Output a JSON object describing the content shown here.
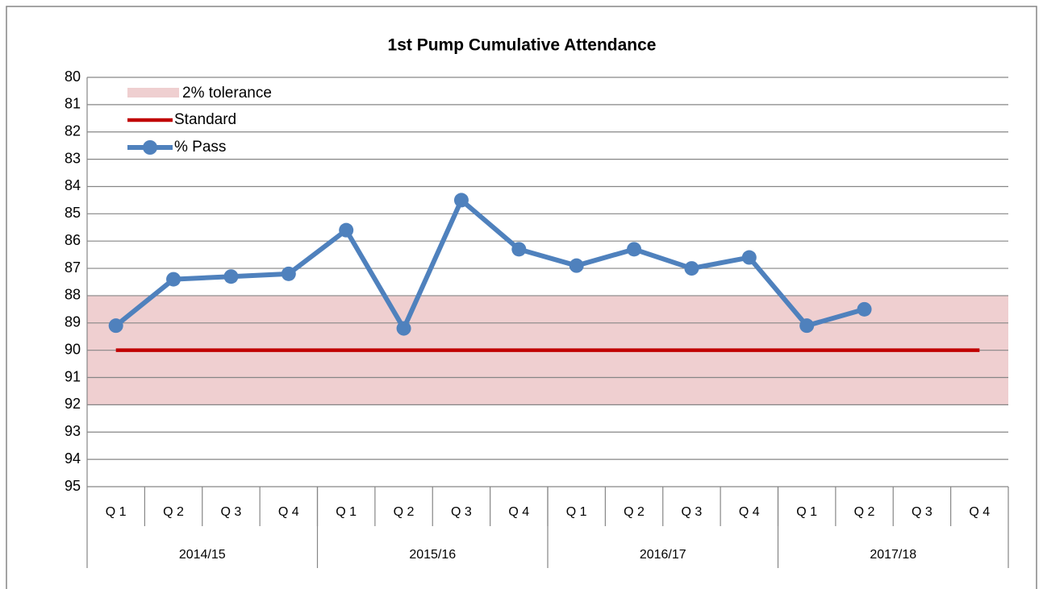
{
  "chart_data": {
    "type": "line",
    "title": "1st Pump Cumulative Attendance",
    "category_groups": [
      {
        "name": "2014/15",
        "categories": [
          "Q 1",
          "Q 2",
          "Q 3",
          "Q 4"
        ]
      },
      {
        "name": "2015/16",
        "categories": [
          "Q 1",
          "Q 2",
          "Q 3",
          "Q 4"
        ]
      },
      {
        "name": "2016/17",
        "categories": [
          "Q 1",
          "Q 2",
          "Q 3",
          "Q 4"
        ]
      },
      {
        "name": "2017/18",
        "categories": [
          "Q 1",
          "Q 2",
          "Q 3",
          "Q 4"
        ]
      }
    ],
    "ylim": [
      80,
      95
    ],
    "y_inverted": true,
    "yticks": [
      80,
      81,
      82,
      83,
      84,
      85,
      86,
      87,
      88,
      89,
      90,
      91,
      92,
      93,
      94,
      95
    ],
    "grid": true,
    "legend": "top-left",
    "band": {
      "name": "2% tolerance",
      "color": "#efcfd0",
      "low": 88,
      "high": 92
    },
    "series": [
      {
        "name": "Standard",
        "color": "#c00000",
        "markers": false,
        "values": [
          90,
          90,
          90,
          90,
          90,
          90,
          90,
          90,
          90,
          90,
          90,
          90,
          90,
          90,
          90,
          90
        ]
      },
      {
        "name": "% Pass",
        "color": "#4f81bd",
        "markers": true,
        "values": [
          89.1,
          87.4,
          87.3,
          87.2,
          85.6,
          89.2,
          84.5,
          86.3,
          86.9,
          86.3,
          87.0,
          86.6,
          89.1,
          88.5,
          null,
          null
        ]
      }
    ]
  }
}
